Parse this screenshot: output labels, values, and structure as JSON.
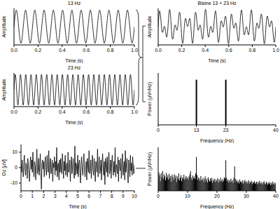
{
  "chart_data": [
    {
      "type": "line",
      "title": "13 Hz",
      "color": "#000000",
      "x": [
        0,
        0.0192,
        0.0385,
        0.0577,
        0.0769,
        0.0962,
        0.1154,
        0.1346,
        0.1538,
        0.1731,
        0.1923,
        0.2115,
        0.2308,
        0.25,
        0.2692,
        0.2885,
        0.3077,
        0.3269,
        0.3462,
        0.3654,
        0.3846,
        0.4038,
        0.4231,
        0.4423,
        0.4615,
        0.4808,
        0.5,
        0.5192,
        0.5385,
        0.5577,
        0.5769,
        0.5962,
        0.6154,
        0.6346,
        0.6538,
        0.6731,
        0.6923,
        0.7115,
        0.7308,
        0.75,
        0.7692,
        0.7885,
        0.8077,
        0.8269,
        0.8462,
        0.8654,
        0.8846,
        0.9038,
        0.9231,
        0.9423,
        0.9615,
        0.9808,
        1
      ],
      "values": [
        0,
        1,
        0,
        -1,
        0,
        1,
        0,
        -1,
        0,
        1,
        0,
        -1,
        0,
        1,
        0,
        -1,
        0,
        1,
        0,
        -1,
        0,
        1,
        0,
        -1,
        0,
        1,
        0,
        -1,
        0,
        1,
        0,
        -1,
        0,
        1,
        0,
        -1,
        0,
        1,
        0,
        -1,
        0,
        1,
        0,
        -1,
        0,
        1,
        0,
        -1,
        0,
        1,
        0,
        -1,
        0
      ],
      "xlim": [
        0,
        1
      ],
      "xticks": [
        {
          "value": 0,
          "label": "0.0"
        },
        0.2,
        0.4,
        0.6,
        0.8,
        {
          "value": 1,
          "label": "1.0"
        }
      ],
      "ylim": [
        -1.1,
        1.1
      ],
      "x_label": "Time (s)",
      "y_label": "Amplitude",
      "tick_labels": "x"
    },
    {
      "type": "line",
      "title": "23 Hz",
      "color": "#000000",
      "x": [
        0,
        0.0109,
        0.0217,
        0.0326,
        0.0435,
        0.0543,
        0.0652,
        0.0761,
        0.087,
        0.0978,
        0.1087,
        0.1196,
        0.1304,
        0.1413,
        0.1522,
        0.163,
        0.1739,
        0.1848,
        0.1957,
        0.2065,
        0.2174,
        0.2283,
        0.2391,
        0.25,
        0.2609,
        0.2717,
        0.2826,
        0.2935,
        0.3043,
        0.3152,
        0.3261,
        0.337,
        0.3478,
        0.3587,
        0.3696,
        0.3804,
        0.3913,
        0.4022,
        0.413,
        0.4239,
        0.4348,
        0.4457,
        0.4565,
        0.4674,
        0.4783,
        0.4891,
        0.5,
        0.5109,
        0.5217,
        0.5326,
        0.5435,
        0.5543,
        0.5652,
        0.5761,
        0.587,
        0.5978,
        0.6087,
        0.6196,
        0.6304,
        0.6413,
        0.6522,
        0.663,
        0.6739,
        0.6848,
        0.6957,
        0.7065,
        0.7174,
        0.7283,
        0.7391,
        0.75,
        0.7609,
        0.7717,
        0.7826,
        0.7935,
        0.8043,
        0.8152,
        0.8261,
        0.837,
        0.8478,
        0.8587,
        0.8696,
        0.8804,
        0.8913,
        0.9022,
        0.913,
        0.9239,
        0.9348,
        0.9457,
        0.9565,
        0.9674,
        0.9783,
        0.9891,
        1
      ],
      "values": [
        0,
        1,
        0,
        -1,
        0,
        1,
        0,
        -1,
        0,
        1,
        0,
        -1,
        0,
        1,
        0,
        -1,
        0,
        1,
        0,
        -1,
        0,
        1,
        0,
        -1,
        0,
        1,
        0,
        -1,
        0,
        1,
        0,
        -1,
        0,
        1,
        0,
        -1,
        0,
        1,
        0,
        -1,
        0,
        1,
        0,
        -1,
        0,
        1,
        0,
        -1,
        0,
        1,
        0,
        -1,
        0,
        1,
        0,
        -1,
        0,
        1,
        0,
        -1,
        0,
        1,
        0,
        -1,
        0,
        1,
        0,
        -1,
        0,
        1,
        0,
        -1,
        0,
        1,
        0,
        -1,
        0,
        1,
        0,
        -1,
        0,
        1,
        0,
        -1,
        0,
        1,
        0,
        -1,
        0,
        1,
        0,
        -1,
        0
      ],
      "xlim": [
        0,
        1
      ],
      "xticks": [
        {
          "value": 0,
          "label": "0.0"
        },
        0.2,
        0.4,
        0.6,
        0.8,
        {
          "value": 1,
          "label": "1.0"
        }
      ],
      "ylim": [
        -1.1,
        1.1
      ],
      "x_label": "Time (s)",
      "y_label": "Amplitude",
      "tick_labels": "x"
    },
    {
      "type": "line",
      "color": "#000000",
      "x": [
        0,
        0.05,
        0.1,
        0.15,
        0.2,
        0.25,
        0.3,
        0.35,
        0.4,
        0.45,
        0.5,
        0.55,
        0.6,
        0.65,
        0.7,
        0.75,
        0.8,
        0.85,
        0.9,
        0.95,
        1,
        1.05,
        1.1,
        1.15,
        1.2,
        1.25,
        1.3,
        1.35,
        1.4,
        1.45,
        1.5,
        1.55,
        1.6,
        1.65,
        1.7,
        1.75,
        1.8,
        1.85,
        1.9,
        1.95,
        2,
        2.05,
        2.1,
        2.15,
        2.2,
        2.25,
        2.3,
        2.35,
        2.4,
        2.45,
        2.5,
        2.55,
        2.6,
        2.65,
        2.7,
        2.75,
        2.8,
        2.85,
        2.9,
        2.95,
        3,
        3.05,
        3.1,
        3.15,
        3.2,
        3.25,
        3.3,
        3.35,
        3.4,
        3.45,
        3.5,
        3.55,
        3.6,
        3.65,
        3.7,
        3.75,
        3.8,
        3.85,
        3.9,
        3.95,
        4,
        4.05,
        4.1,
        4.15,
        4.2,
        4.25,
        4.3,
        4.35,
        4.4,
        4.45,
        4.5,
        4.55,
        4.6,
        4.65,
        4.7,
        4.75,
        4.8,
        4.85,
        4.9,
        4.95,
        5,
        5.05,
        5.1,
        5.15,
        5.2,
        5.25,
        5.3,
        5.35,
        5.4,
        5.45,
        5.5,
        5.55,
        5.6,
        5.65,
        5.7,
        5.75,
        5.8,
        5.85,
        5.9,
        5.95,
        6,
        6.05,
        6.1,
        6.15,
        6.2,
        6.25,
        6.3,
        6.35,
        6.4,
        6.45,
        6.5,
        6.55,
        6.6,
        6.65,
        6.7,
        6.75,
        6.8,
        6.85,
        6.9,
        6.95,
        7,
        7.05,
        7.1,
        7.15,
        7.2,
        7.25,
        7.3,
        7.35,
        7.4,
        7.45,
        7.5,
        7.55,
        7.6,
        7.65,
        7.7,
        7.75,
        7.8,
        7.85,
        7.9,
        7.95,
        8,
        8.05,
        8.1,
        8.15,
        8.2,
        8.25,
        8.3,
        8.35,
        8.4,
        8.45,
        8.5,
        8.55,
        8.6,
        8.65,
        8.7,
        8.75,
        8.8,
        8.85,
        8.9,
        8.95,
        9,
        9.05,
        9.1,
        9.15,
        9.2,
        9.25,
        9.3,
        9.35,
        9.4,
        9.45,
        9.5,
        9.55,
        9.6,
        9.65,
        9.7,
        9.75,
        9.8,
        9.85,
        9.9,
        9.95,
        10
      ],
      "values": [
        2,
        -3,
        5,
        -1,
        -6,
        4,
        8,
        -2,
        -5,
        3,
        1,
        -7,
        6,
        2,
        -4,
        -9,
        3,
        7,
        -1,
        5,
        -3,
        10,
        -2,
        -6,
        4,
        1,
        -8,
        3,
        12,
        -4,
        -2,
        6,
        -5,
        0,
        9,
        -3,
        -14,
        2,
        5,
        -1,
        4,
        -6,
        3,
        7,
        -2,
        -5,
        8,
        1,
        -3,
        11,
        -7,
        2,
        6,
        -4,
        -1,
        5,
        -9,
        3,
        0,
        7,
        -5,
        4,
        -2,
        13,
        -6,
        1,
        3,
        -8,
        5,
        -3,
        6,
        -1,
        -4,
        9,
        2,
        -7,
        4,
        -2,
        8,
        -5,
        1,
        3,
        -6,
        10,
        -3,
        -1,
        5,
        -9,
        2,
        7,
        -4,
        0,
        6,
        -2,
        -7,
        14,
        -5,
        3,
        1,
        -4,
        8,
        -6,
        2,
        5,
        -3,
        -10,
        4,
        7,
        -1,
        -5,
        3,
        9,
        -2,
        -6,
        1,
        4,
        -8,
        6,
        2,
        -3,
        11,
        -4,
        -1,
        5,
        -7,
        3,
        8,
        -2,
        -5,
        6,
        0,
        -9,
        4,
        2,
        -3,
        12,
        -6,
        1,
        7,
        -4,
        -2,
        5,
        -8,
        3,
        9,
        -1,
        -5,
        4,
        -11,
        6,
        2,
        -3,
        7,
        -6,
        1,
        10,
        -4,
        -2,
        5,
        -7,
        3,
        8,
        -1,
        -5,
        4,
        -3,
        13,
        -6,
        2,
        0,
        -4,
        7,
        -9,
        5,
        1,
        -2,
        6,
        -7,
        3,
        9,
        -5,
        -1,
        4,
        -8,
        11,
        -3,
        2,
        6,
        -4,
        -10,
        5,
        1,
        -6,
        8,
        -2,
        3,
        -5,
        7,
        -1,
        -4,
        2
      ],
      "xlim": [
        0,
        10
      ],
      "xticks": [
        0,
        1,
        2,
        3,
        4,
        5,
        6,
        7,
        8,
        9,
        10
      ],
      "ylim": [
        -15,
        15
      ],
      "yticks": [
        -10,
        0,
        10
      ],
      "x_label": "Time (s)",
      "y_label": "Oz [µV]"
    },
    {
      "type": "line",
      "title": "Bisine 13 + 23 Hz",
      "color": "#000000",
      "x": [
        0,
        0.01,
        0.02,
        0.03,
        0.04,
        0.05,
        0.06,
        0.07,
        0.08,
        0.09,
        0.1,
        0.11,
        0.12,
        0.13,
        0.14,
        0.15,
        0.16,
        0.17,
        0.18,
        0.19,
        0.2,
        0.21,
        0.22,
        0.23,
        0.24,
        0.25,
        0.26,
        0.27,
        0.28,
        0.29,
        0.3,
        0.31,
        0.32,
        0.33,
        0.34,
        0.35,
        0.36,
        0.37,
        0.38,
        0.39,
        0.4,
        0.41,
        0.42,
        0.43,
        0.44,
        0.45,
        0.46,
        0.47,
        0.48,
        0.49,
        0.5,
        0.51,
        0.52,
        0.53,
        0.54,
        0.55,
        0.56,
        0.57,
        0.58,
        0.59,
        0.6,
        0.61,
        0.62,
        0.63,
        0.64,
        0.65,
        0.66,
        0.67,
        0.68,
        0.69,
        0.7,
        0.71,
        0.72,
        0.73,
        0.74,
        0.75,
        0.76,
        0.77,
        0.78,
        0.79,
        0.8,
        0.81,
        0.82,
        0.83,
        0.84,
        0.85,
        0.86,
        0.87,
        0.88,
        0.89,
        0.9,
        0.91,
        0.92,
        0.93,
        0.94,
        0.95,
        0.96,
        0.97,
        0.98,
        0.99,
        1
      ],
      "values": [
        0,
        1.72,
        1.25,
        -0.29,
        -0.61,
        0,
        -0.3,
        -1.17,
        -0.6,
        1.3,
        1.9,
        0.24,
        -1.37,
        -0.99,
        0.08,
        0,
        -0.42,
        0.43,
        1.62,
        0.92,
        -1.18,
        -1.87,
        -0.4,
        0.91,
        0.56,
        0,
        0.56,
        0.91,
        -0.4,
        -1.87,
        -1.18,
        0.92,
        1.62,
        0.43,
        -0.42,
        0,
        0.08,
        -0.99,
        -1.37,
        0.24,
        1.9,
        1.3,
        -0.6,
        -1.17,
        -0.3,
        0,
        -0.61,
        -0.29,
        1.25,
        1.72,
        0,
        -1.72,
        -1.25,
        0.29,
        0.61,
        0,
        0.3,
        1.17,
        0.6,
        -1.3,
        -1.9,
        -0.24,
        1.37,
        0.99,
        -0.08,
        0,
        0.42,
        -0.43,
        -1.62,
        -0.92,
        1.18,
        1.87,
        0.4,
        -0.91,
        -0.56,
        0,
        -0.56,
        -0.91,
        0.4,
        1.87,
        1.18,
        -0.92,
        -1.62,
        -0.43,
        0.42,
        0,
        -0.08,
        0.99,
        1.37,
        -0.24,
        -1.9,
        -1.3,
        0.6,
        1.17,
        0.3,
        0,
        0.61,
        0.29,
        -1.25,
        -1.72,
        0
      ],
      "xlim": [
        0,
        1
      ],
      "xticks": [
        {
          "value": 0,
          "label": "0.0"
        },
        0.2,
        0.4,
        0.6,
        0.8,
        {
          "value": 1,
          "label": "1.0"
        }
      ],
      "ylim": [
        -2.1,
        2.1
      ],
      "x_label": "Time (s)",
      "y_label": "Amplitude",
      "tick_labels": "x"
    },
    {
      "type": "bar",
      "color": "#000000",
      "x": [
        13,
        23
      ],
      "values": [
        1,
        1
      ],
      "xlim": [
        0,
        40
      ],
      "xticks": [
        0,
        13,
        23,
        40
      ],
      "ylim": [
        0,
        1.15
      ],
      "x_label": "Frequency (Hz)",
      "y_label": "Power (µV²/Hz)",
      "tick_labels": "x"
    },
    {
      "type": "bar",
      "color": "#000000",
      "x": [
        0,
        0.25,
        0.5,
        0.75,
        1,
        1.25,
        1.5,
        1.75,
        2,
        2.25,
        2.5,
        2.75,
        3,
        3.25,
        3.5,
        3.75,
        4,
        4.25,
        4.5,
        4.75,
        5,
        5.25,
        5.5,
        5.75,
        6,
        6.25,
        6.5,
        6.75,
        7,
        7.25,
        7.5,
        7.75,
        8,
        8.25,
        8.5,
        8.75,
        9,
        9.25,
        9.5,
        9.75,
        10,
        10.25,
        10.5,
        10.75,
        11,
        11.25,
        11.5,
        11.75,
        12,
        12.25,
        12.5,
        12.75,
        13,
        13.25,
        13.5,
        13.75,
        14,
        14.25,
        14.5,
        14.75,
        15,
        15.25,
        15.5,
        15.75,
        16,
        16.25,
        16.5,
        16.75,
        17,
        17.25,
        17.5,
        17.75,
        18,
        18.25,
        18.5,
        18.75,
        19,
        19.25,
        19.5,
        19.75,
        20,
        20.25,
        20.5,
        20.75,
        21,
        21.25,
        21.5,
        21.75,
        22,
        22.25,
        22.5,
        22.75,
        23,
        23.25,
        23.5,
        23.75,
        24,
        24.25,
        24.5,
        24.75,
        25,
        25.25,
        25.5,
        25.75,
        26,
        26.25,
        26.5,
        26.75,
        27,
        27.25,
        27.5,
        27.75,
        28,
        28.25,
        28.5,
        28.75,
        29,
        29.25,
        29.5,
        29.75,
        30,
        30.25,
        30.5,
        30.75,
        31,
        31.25,
        31.5,
        31.75,
        32,
        32.25,
        32.5,
        32.75,
        33,
        33.25,
        33.5,
        33.75,
        34,
        34.25,
        34.5,
        34.75,
        35,
        35.25,
        35.5,
        35.75,
        36,
        36.25,
        36.5,
        36.75,
        37,
        37.25,
        37.5,
        37.75,
        38,
        38.25,
        38.5,
        38.75,
        39,
        39.25,
        39.5,
        39.75,
        40
      ],
      "values": [
        0.28,
        0.42,
        0.36,
        0.22,
        0.4,
        0.31,
        0.45,
        0.27,
        0.38,
        0.33,
        0.24,
        0.41,
        0.3,
        0.36,
        0.26,
        0.39,
        0.29,
        0.34,
        0.21,
        0.37,
        0.32,
        0.25,
        0.38,
        0.29,
        0.35,
        0.2,
        0.33,
        0.27,
        0.4,
        0.24,
        0.3,
        0.36,
        0.22,
        0.31,
        0.28,
        0.37,
        0.25,
        0.3,
        0.34,
        0.27,
        0.31,
        0.26,
        0.33,
        0.38,
        0.45,
        0.3,
        0.24,
        0.35,
        0.29,
        0.33,
        0.27,
        0.4,
        0.78,
        0.36,
        0.25,
        0.31,
        0.28,
        0.22,
        0.34,
        0.26,
        0.24,
        0.3,
        0.2,
        0.27,
        0.33,
        0.22,
        0.28,
        0.19,
        0.31,
        0.25,
        0.21,
        0.29,
        0.23,
        0.3,
        0.18,
        0.26,
        0.22,
        0.28,
        0.2,
        0.25,
        0.23,
        0.29,
        0.19,
        0.26,
        0.21,
        0.3,
        0.24,
        0.2,
        0.27,
        0.22,
        0.31,
        0.28,
        0.7,
        0.3,
        0.22,
        0.26,
        0.19,
        0.25,
        0.21,
        0.28,
        0.2,
        0.24,
        0.18,
        0.3,
        0.56,
        0.27,
        0.21,
        0.25,
        0.19,
        0.23,
        0.17,
        0.26,
        0.2,
        0.22,
        0.18,
        0.24,
        0.16,
        0.21,
        0.25,
        0.19,
        0.22,
        0.17,
        0.2,
        0.24,
        0.16,
        0.21,
        0.19,
        0.23,
        0.15,
        0.2,
        0.18,
        0.22,
        0.16,
        0.19,
        0.21,
        0.15,
        0.2,
        0.17,
        0.23,
        0.18,
        0.16,
        0.2,
        0.14,
        0.19,
        0.22,
        0.17,
        0.15,
        0.21,
        0.18,
        0.14,
        0.19,
        0.16,
        0.2,
        0.13,
        0.18,
        0.15,
        0.21,
        0.17,
        0.14,
        0.19,
        0.16
      ],
      "xlim": [
        0,
        40
      ],
      "xticks": [
        0,
        10,
        20,
        30,
        40
      ],
      "ylim": [
        0,
        1
      ],
      "x_label": "Frequency (Hz)",
      "y_label": "Power (µV²/Hz)",
      "tick_labels": "x"
    }
  ]
}
